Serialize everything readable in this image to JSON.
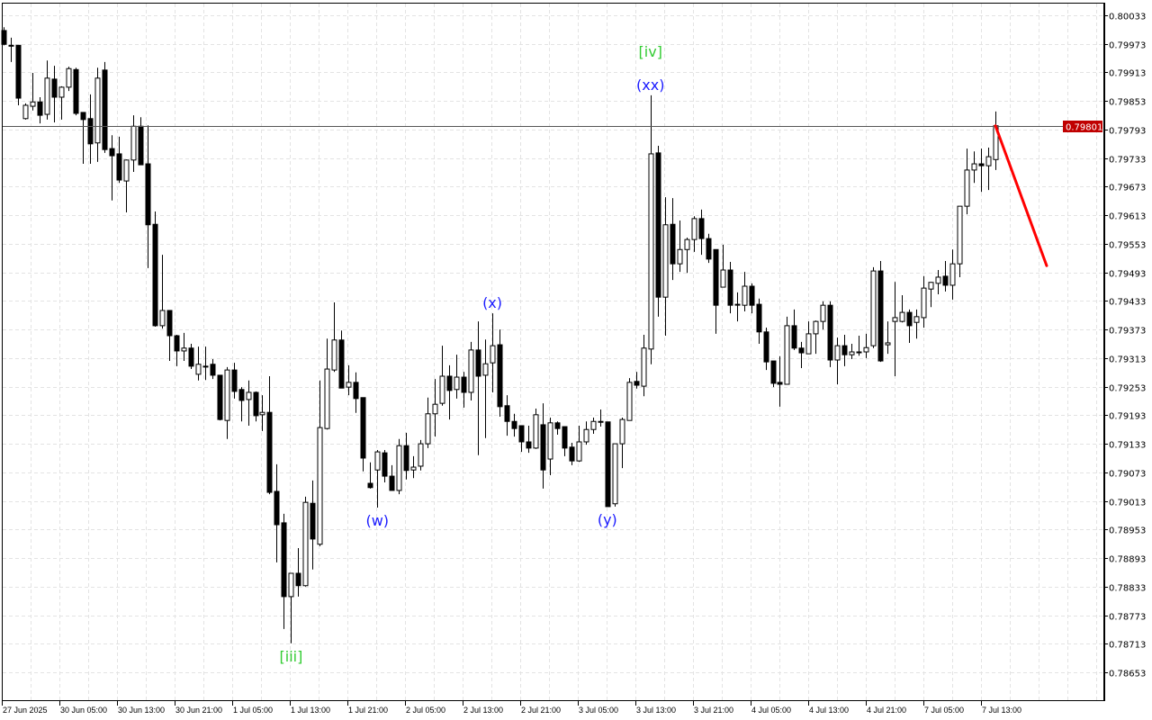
{
  "chart_data": {
    "type": "candlestick",
    "title": "",
    "timeframe_step_hours": 1,
    "y_ticks": [
      "0.80033",
      "0.79973",
      "0.79913",
      "0.79853",
      "0.79793",
      "0.79733",
      "0.79673",
      "0.79613",
      "0.79553",
      "0.79493",
      "0.79433",
      "0.79373",
      "0.79313",
      "0.79253",
      "0.79193",
      "0.79133",
      "0.79073",
      "0.79013",
      "0.78953",
      "0.78893",
      "0.78833",
      "0.78773",
      "0.78713",
      "0.78653"
    ],
    "ylim": [
      0.78615,
      0.8008
    ],
    "x_ticks": [
      "27 Jun 2025",
      "30 Jun 05:00",
      "30 Jun 13:00",
      "30 Jun 21:00",
      "1 Jul 05:00",
      "1 Jul 13:00",
      "1 Jul 21:00",
      "2 Jul 05:00",
      "2 Jul 13:00",
      "2 Jul 21:00",
      "3 Jul 05:00",
      "3 Jul 13:00",
      "3 Jul 21:00",
      "4 Jul 05:00",
      "4 Jul 13:00",
      "4 Jul 21:00",
      "7 Jul 05:00",
      "7 Jul 13:00"
    ],
    "grid": true,
    "current_price": {
      "value": 0.79801,
      "label": "0.79801",
      "color": "#c00000"
    },
    "colors": {
      "bull_fill": "#ffffff",
      "bear_fill": "#000000",
      "outline": "#000000",
      "grid": "#e3e3e3",
      "forecast": "#ff0000",
      "wave_major": "#33cc33",
      "wave_minor": "#1a1aff"
    },
    "candles_ohlc": [
      [
        0.80001,
        0.80008,
        0.7997,
        0.79972
      ],
      [
        0.7997,
        0.79986,
        0.79935,
        0.7997
      ],
      [
        0.7997,
        0.7997,
        0.79844,
        0.79859
      ],
      [
        0.79816,
        0.79848,
        0.79814,
        0.79844
      ],
      [
        0.79842,
        0.79912,
        0.79833,
        0.79851
      ],
      [
        0.79851,
        0.79861,
        0.79806,
        0.79823
      ],
      [
        0.79825,
        0.79938,
        0.79814,
        0.79901
      ],
      [
        0.79899,
        0.79927,
        0.79808,
        0.79861
      ],
      [
        0.79861,
        0.79884,
        0.79814,
        0.79882
      ],
      [
        0.79882,
        0.79925,
        0.79874,
        0.79921
      ],
      [
        0.79919,
        0.79923,
        0.79823,
        0.79827
      ],
      [
        0.79829,
        0.79829,
        0.79721,
        0.79814
      ],
      [
        0.79816,
        0.79867,
        0.79721,
        0.79763
      ],
      [
        0.79765,
        0.79923,
        0.79725,
        0.79901
      ],
      [
        0.79918,
        0.79935,
        0.79744,
        0.79751
      ],
      [
        0.79753,
        0.79781,
        0.79644,
        0.79738
      ],
      [
        0.79742,
        0.79778,
        0.79681,
        0.79687
      ],
      [
        0.79685,
        0.7973,
        0.79619,
        0.79729
      ],
      [
        0.79729,
        0.79823,
        0.79704,
        0.798
      ],
      [
        0.798,
        0.79819,
        0.79719,
        0.79719
      ],
      [
        0.79721,
        0.79802,
        0.79502,
        0.79593
      ],
      [
        0.79594,
        0.79621,
        0.79379,
        0.79381
      ],
      [
        0.79381,
        0.7953,
        0.79375,
        0.79413
      ],
      [
        0.79413,
        0.79413,
        0.79307,
        0.7936
      ],
      [
        0.7936,
        0.79362,
        0.79296,
        0.79328
      ],
      [
        0.79328,
        0.79366,
        0.79307,
        0.79334
      ],
      [
        0.79334,
        0.79343,
        0.7929,
        0.79296
      ],
      [
        0.79279,
        0.79337,
        0.79266,
        0.793
      ],
      [
        0.79296,
        0.79337,
        0.79267,
        0.79296
      ],
      [
        0.793,
        0.79311,
        0.79269,
        0.79277
      ],
      [
        0.79277,
        0.79277,
        0.79182,
        0.79184
      ],
      [
        0.79182,
        0.79294,
        0.79143,
        0.79288
      ],
      [
        0.79288,
        0.79303,
        0.79228,
        0.79243
      ],
      [
        0.79247,
        0.79252,
        0.7918,
        0.79224
      ],
      [
        0.79226,
        0.79266,
        0.79171,
        0.79241
      ],
      [
        0.79241,
        0.79243,
        0.7918,
        0.79192
      ],
      [
        0.79194,
        0.79235,
        0.7916,
        0.79199
      ],
      [
        0.79199,
        0.79275,
        0.79027,
        0.79031
      ],
      [
        0.79033,
        0.7909,
        0.78884,
        0.78963
      ],
      [
        0.78967,
        0.78986,
        0.78744,
        0.78812
      ],
      [
        0.78812,
        0.78861,
        0.78714,
        0.78861
      ],
      [
        0.78861,
        0.78914,
        0.78812,
        0.78835
      ],
      [
        0.78835,
        0.79022,
        0.78833,
        0.7901
      ],
      [
        0.79008,
        0.79056,
        0.78869,
        0.78933
      ],
      [
        0.78922,
        0.79266,
        0.78918,
        0.79167
      ],
      [
        0.79165,
        0.79354,
        0.79163,
        0.7929
      ],
      [
        0.79288,
        0.7943,
        0.79284,
        0.79351
      ],
      [
        0.79351,
        0.79371,
        0.7925,
        0.7925
      ],
      [
        0.79252,
        0.79298,
        0.79235,
        0.79262
      ],
      [
        0.79262,
        0.79283,
        0.79198,
        0.79228
      ],
      [
        0.7923,
        0.7923,
        0.79075,
        0.79103
      ],
      [
        0.7905,
        0.79094,
        0.79039,
        0.79041
      ],
      [
        0.79078,
        0.7912,
        0.78999,
        0.79116
      ],
      [
        0.79114,
        0.7912,
        0.79052,
        0.79065
      ],
      [
        0.79065,
        0.79088,
        0.79035,
        0.79035
      ],
      [
        0.79035,
        0.79143,
        0.79027,
        0.79129
      ],
      [
        0.79129,
        0.79156,
        0.79058,
        0.79077
      ],
      [
        0.79078,
        0.79107,
        0.79061,
        0.79084
      ],
      [
        0.79086,
        0.79141,
        0.79077,
        0.79133
      ],
      [
        0.79133,
        0.7923,
        0.79124,
        0.79196
      ],
      [
        0.79196,
        0.79269,
        0.79148,
        0.79216
      ],
      [
        0.79218,
        0.79339,
        0.79213,
        0.79275
      ],
      [
        0.79275,
        0.79298,
        0.79184,
        0.79245
      ],
      [
        0.79247,
        0.7932,
        0.79228,
        0.79273
      ],
      [
        0.79273,
        0.79284,
        0.79209,
        0.79241
      ],
      [
        0.79241,
        0.79347,
        0.79224,
        0.7933
      ],
      [
        0.7933,
        0.7939,
        0.79109,
        0.79275
      ],
      [
        0.79277,
        0.79352,
        0.79145,
        0.79301
      ],
      [
        0.79303,
        0.79407,
        0.79241,
        0.79339
      ],
      [
        0.79341,
        0.79373,
        0.7919,
        0.79211
      ],
      [
        0.79213,
        0.79235,
        0.7915,
        0.7918
      ],
      [
        0.7918,
        0.79196,
        0.79148,
        0.79165
      ],
      [
        0.79171,
        0.79171,
        0.79116,
        0.79137
      ],
      [
        0.79137,
        0.79171,
        0.79114,
        0.79124
      ],
      [
        0.79124,
        0.79207,
        0.79122,
        0.79194
      ],
      [
        0.79173,
        0.79218,
        0.79039,
        0.79078
      ],
      [
        0.79101,
        0.79188,
        0.79067,
        0.79177
      ],
      [
        0.79177,
        0.7918,
        0.79152,
        0.79165
      ],
      [
        0.79169,
        0.79169,
        0.79107,
        0.79124
      ],
      [
        0.79126,
        0.79135,
        0.79088,
        0.79097
      ],
      [
        0.79097,
        0.79171,
        0.79095,
        0.79137
      ],
      [
        0.79137,
        0.7918,
        0.79131,
        0.79163
      ],
      [
        0.79163,
        0.79188,
        0.79154,
        0.7918
      ],
      [
        0.7918,
        0.79205,
        0.79169,
        0.7918
      ],
      [
        0.79179,
        0.79179,
        0.79001,
        0.79001
      ],
      [
        0.79007,
        0.79133,
        0.79001,
        0.79133
      ],
      [
        0.79133,
        0.79188,
        0.79082,
        0.79184
      ],
      [
        0.79182,
        0.79271,
        0.79182,
        0.79262
      ],
      [
        0.79264,
        0.79284,
        0.79249,
        0.79256
      ],
      [
        0.79254,
        0.79362,
        0.79233,
        0.79334
      ],
      [
        0.79332,
        0.79865,
        0.793,
        0.79742
      ],
      [
        0.79744,
        0.79759,
        0.794,
        0.79441
      ],
      [
        0.79441,
        0.79651,
        0.7936,
        0.79593
      ],
      [
        0.79594,
        0.79649,
        0.79477,
        0.79511
      ],
      [
        0.79511,
        0.79602,
        0.79494,
        0.79541
      ],
      [
        0.79541,
        0.79566,
        0.79492,
        0.79562
      ],
      [
        0.79562,
        0.79611,
        0.79536,
        0.79606
      ],
      [
        0.79606,
        0.79625,
        0.7953,
        0.79564
      ],
      [
        0.79564,
        0.79574,
        0.79513,
        0.79521
      ],
      [
        0.79541,
        0.79541,
        0.79364,
        0.79424
      ],
      [
        0.79462,
        0.79551,
        0.79462,
        0.79498
      ],
      [
        0.79498,
        0.79515,
        0.79407,
        0.79424
      ],
      [
        0.79426,
        0.79451,
        0.7939,
        0.79426
      ],
      [
        0.79424,
        0.79494,
        0.79411,
        0.79464
      ],
      [
        0.79464,
        0.7947,
        0.79407,
        0.79424
      ],
      [
        0.79426,
        0.79438,
        0.79343,
        0.79368
      ],
      [
        0.79368,
        0.79377,
        0.79288,
        0.79305
      ],
      [
        0.79307,
        0.79307,
        0.79252,
        0.7926
      ],
      [
        0.79262,
        0.79317,
        0.79211,
        0.79258
      ],
      [
        0.79258,
        0.794,
        0.79258,
        0.79381
      ],
      [
        0.79381,
        0.79415,
        0.7933,
        0.79334
      ],
      [
        0.79334,
        0.79347,
        0.79292,
        0.79324
      ],
      [
        0.79322,
        0.7939,
        0.79322,
        0.79364
      ],
      [
        0.79364,
        0.79392,
        0.79322,
        0.7939
      ],
      [
        0.7939,
        0.79432,
        0.79373,
        0.79424
      ],
      [
        0.79424,
        0.79432,
        0.79294,
        0.79309
      ],
      [
        0.79309,
        0.79356,
        0.79258,
        0.79339
      ],
      [
        0.79339,
        0.79362,
        0.79296,
        0.7932
      ],
      [
        0.7932,
        0.79343,
        0.79311,
        0.79326
      ],
      [
        0.79326,
        0.7936,
        0.79318,
        0.79326
      ],
      [
        0.79326,
        0.79364,
        0.79313,
        0.79335
      ],
      [
        0.79339,
        0.79504,
        0.79334,
        0.79496
      ],
      [
        0.79496,
        0.79517,
        0.79305,
        0.79307
      ],
      [
        0.79341,
        0.7939,
        0.79322,
        0.79345
      ],
      [
        0.7939,
        0.79473,
        0.79275,
        0.79398
      ],
      [
        0.7939,
        0.79445,
        0.79388,
        0.79409
      ],
      [
        0.79409,
        0.79415,
        0.79345,
        0.79381
      ],
      [
        0.79388,
        0.79415,
        0.79354,
        0.794
      ],
      [
        0.79398,
        0.79485,
        0.79377,
        0.7946
      ],
      [
        0.79458,
        0.79473,
        0.7942,
        0.79472
      ],
      [
        0.7947,
        0.79498,
        0.79447,
        0.79483
      ],
      [
        0.79485,
        0.79517,
        0.79453,
        0.79466
      ],
      [
        0.79466,
        0.79541,
        0.79436,
        0.79511
      ],
      [
        0.79511,
        0.79632,
        0.79483,
        0.79632
      ],
      [
        0.79632,
        0.79753,
        0.79615,
        0.79708
      ],
      [
        0.79708,
        0.79747,
        0.79681,
        0.79721
      ],
      [
        0.79721,
        0.79753,
        0.79662,
        0.79717
      ],
      [
        0.79717,
        0.79755,
        0.79666,
        0.79736
      ],
      [
        0.7973,
        0.79831,
        0.79708,
        0.79801
      ]
    ],
    "wave_labels": [
      {
        "text": "[iii]",
        "bar": 40,
        "price": 0.78714,
        "position": "below",
        "level": "major"
      },
      {
        "text": "(w)",
        "bar": 52,
        "price": 0.78999,
        "position": "below",
        "level": "minor"
      },
      {
        "text": "(x)",
        "bar": 68,
        "price": 0.79407,
        "position": "above",
        "level": "minor"
      },
      {
        "text": "(y)",
        "bar": 84,
        "price": 0.79001,
        "position": "below",
        "level": "minor"
      },
      {
        "text": "(xx)",
        "bar": 90,
        "price": 0.79865,
        "position": "above",
        "level": "minor"
      },
      {
        "text": "[iv]",
        "bar": 90,
        "price": 0.79865,
        "position": "above2",
        "level": "major"
      }
    ],
    "forecast_line": {
      "from": {
        "bar": 138,
        "price": 0.79801
      },
      "to": {
        "bar": 145,
        "price": 0.79507
      }
    }
  }
}
